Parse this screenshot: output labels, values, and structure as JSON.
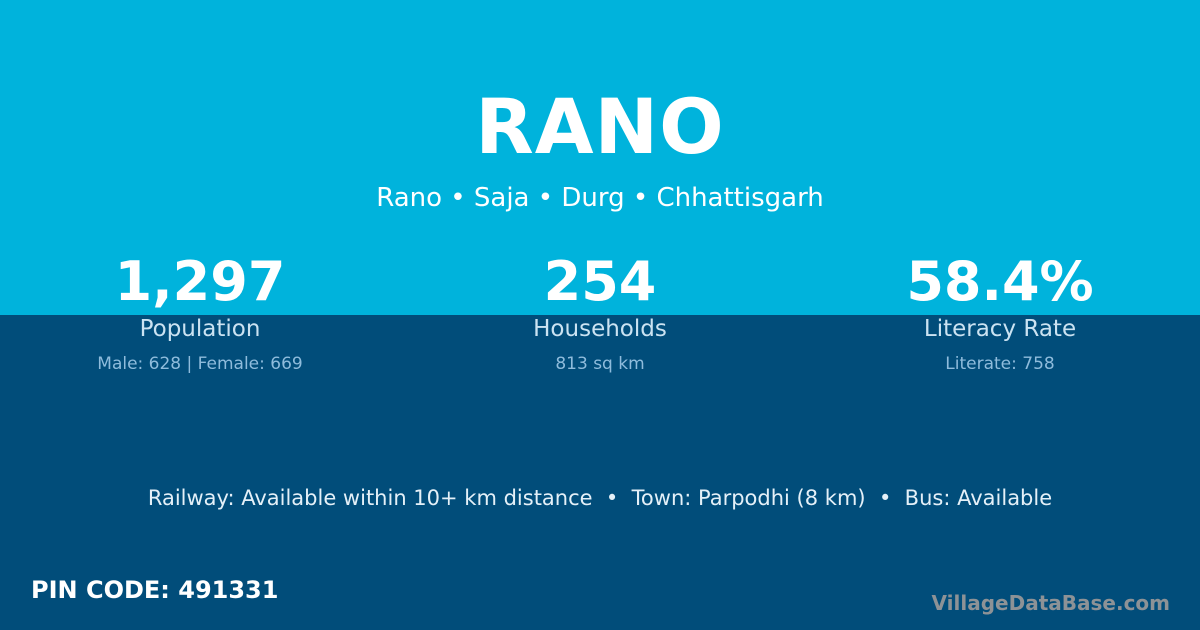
{
  "title": "RANO",
  "subtitle": "Rano • Saja • Durg • Chhattisgarh",
  "colors": {
    "top_bg": "#00b3dc",
    "bottom_bg": "#014d7a"
  },
  "stats": [
    {
      "value": "1,297",
      "label": "Population",
      "sub": "Male: 628 | Female: 669"
    },
    {
      "value": "254",
      "label": "Households",
      "sub": "813 sq km"
    },
    {
      "value": "58.4%",
      "label": "Literacy Rate",
      "sub": "Literate: 758"
    }
  ],
  "info": "Railway: Available within 10+ km distance  •  Town: Parpodhi (8 km)  •  Bus: Available",
  "pin_code": "PIN CODE: 491331",
  "brand": "VillageDataBase.com"
}
